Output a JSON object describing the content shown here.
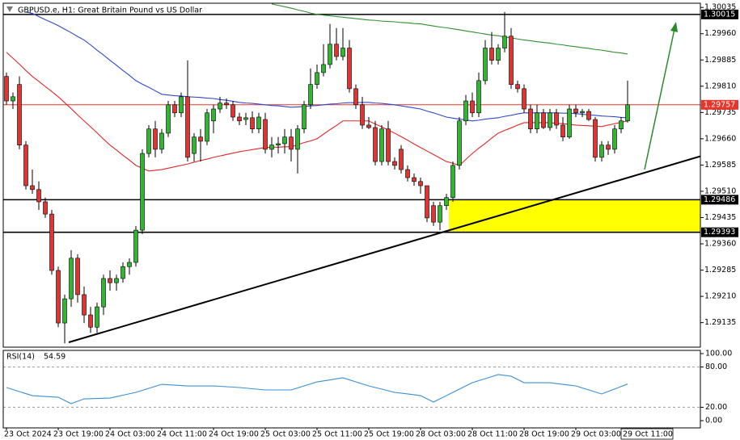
{
  "chart_data": {
    "type": "candlestick",
    "title": "GBPUSD.e, H1:  Great Britain Pound vs US Dollar",
    "categories": [
      "23 Oct 2024",
      null,
      null,
      null,
      null,
      null,
      null,
      null,
      "23 Oct 19:00",
      null,
      null,
      null,
      null,
      null,
      null,
      null,
      "24 Oct 03:00",
      null,
      null,
      null,
      null,
      null,
      null,
      null,
      "24 Oct 11:00",
      null,
      null,
      null,
      null,
      null,
      null,
      null,
      "24 Oct 19:00",
      null,
      null,
      null,
      null,
      null,
      null,
      null,
      "25 Oct 03:00",
      null,
      null,
      null,
      null,
      null,
      null,
      null,
      "25 Oct 11:00",
      null,
      null,
      null,
      null,
      null,
      null,
      null,
      "25 Oct 19:00",
      null,
      null,
      null,
      null,
      null,
      null,
      null,
      "28 Oct 03:00",
      null,
      null,
      null,
      null,
      null,
      null,
      null,
      "28 Oct 11:00",
      null,
      null,
      null,
      null,
      null,
      null,
      null,
      "28 Oct 19:00",
      null,
      null,
      null,
      null,
      null,
      null,
      null,
      "29 Oct 03:00",
      null,
      null,
      null,
      null,
      null,
      null,
      null,
      "29 Oct 11:00"
    ],
    "open": [
      1.29838,
      1.29768,
      1.29815,
      1.29642,
      1.29526,
      1.29515,
      1.2948,
      1.29445,
      1.29284,
      1.29134,
      1.29203,
      1.29319,
      1.29215,
      1.29157,
      1.29122,
      1.2918,
      1.29261,
      1.29249,
      1.29261,
      1.29295,
      1.29307,
      1.29399,
      1.29618,
      1.29688,
      1.2963,
      1.29676,
      1.29757,
      1.29734,
      1.2978,
      1.29618,
      1.29665,
      1.29653,
      1.29711,
      1.29745,
      1.29762,
      1.29757,
      1.29722,
      1.29715,
      1.2972,
      1.29688,
      1.29715,
      1.2963,
      1.29642,
      1.29646,
      1.29665,
      1.2963,
      1.29688,
      1.29757,
      1.29815,
      1.29849,
      1.29872,
      1.2993,
      1.29895,
      1.29919,
      1.29803,
      1.29757,
      1.29699,
      1.29692,
      1.29595,
      1.29688,
      1.29595,
      1.2963,
      1.29572,
      1.29549,
      1.29538,
      1.29526,
      1.29469,
      1.29422,
      1.29469,
      1.29492,
      1.29584,
      1.29711,
      1.29768,
      1.29734,
      1.29826,
      1.29919,
      1.29884,
      1.29919,
      1.29953,
      1.29815,
      1.29803,
      1.29745,
      1.29688,
      1.29734,
      1.29692,
      1.29734,
      1.29699,
      1.29665,
      1.29745,
      1.29734,
      1.29738,
      1.29715,
      1.29607,
      1.29642,
      1.2963,
      1.29688,
      1.29711
    ],
    "high": [
      1.29849,
      1.29792,
      1.29838,
      1.29653,
      1.29572,
      1.29538,
      1.29492,
      1.29457,
      1.29295,
      1.29215,
      1.29342,
      1.2933,
      1.29238,
      1.2918,
      1.29192,
      1.29272,
      1.29284,
      1.29272,
      1.29307,
      1.29319,
      1.29411,
      1.2963,
      1.29699,
      1.29711,
      1.29688,
      1.29768,
      1.29768,
      1.29792,
      1.29884,
      1.29676,
      1.29688,
      1.29745,
      1.29757,
      1.2978,
      1.29775,
      1.29768,
      1.29734,
      1.29734,
      1.29738,
      1.29734,
      1.29734,
      1.29665,
      1.29665,
      1.29688,
      1.29688,
      1.29699,
      1.29768,
      1.29861,
      1.29872,
      1.2993,
      1.29988,
      1.29976,
      1.29976,
      1.29942,
      1.29815,
      1.2978,
      1.29722,
      1.29711,
      1.29699,
      1.29711,
      1.29607,
      1.29642,
      1.29584,
      1.29561,
      1.29549,
      1.29526,
      1.2948,
      1.2948,
      1.29503,
      1.29595,
      1.29722,
      1.29785,
      1.29792,
      1.29849,
      1.29942,
      1.29965,
      1.2993,
      1.30022,
      1.29976,
      1.29826,
      1.29815,
      1.29757,
      1.29757,
      1.29745,
      1.29745,
      1.29745,
      1.29722,
      1.29757,
      1.29757,
      1.29745,
      1.29745,
      1.29722,
      1.29653,
      1.29653,
      1.29699,
      1.29722,
      1.29826
    ],
    "low": [
      1.29757,
      1.29745,
      1.2963,
      1.29515,
      1.29503,
      1.29457,
      1.29434,
      1.29272,
      1.29122,
      1.29076,
      1.2918,
      1.29192,
      1.29134,
      1.29106,
      1.29106,
      1.29157,
      1.29226,
      1.29226,
      1.29249,
      1.29272,
      1.29295,
      1.29388,
      1.29607,
      1.29607,
      1.29618,
      1.29665,
      1.29722,
      1.29722,
      1.29595,
      1.29595,
      1.29595,
      1.29642,
      1.29676,
      1.29734,
      1.29745,
      1.29711,
      1.29699,
      1.29699,
      1.29676,
      1.29676,
      1.29618,
      1.29607,
      1.29618,
      1.29618,
      1.29595,
      1.29561,
      1.29676,
      1.29745,
      1.29803,
      1.29838,
      1.29861,
      1.29884,
      1.29884,
      1.29792,
      1.29745,
      1.29688,
      1.29688,
      1.29584,
      1.29584,
      1.29584,
      1.29572,
      1.29561,
      1.29538,
      1.29526,
      1.29503,
      1.29422,
      1.29411,
      1.29399,
      1.29457,
      1.2948,
      1.29572,
      1.29699,
      1.29722,
      1.29722,
      1.29815,
      1.29872,
      1.29872,
      1.29907,
      1.29803,
      1.29792,
      1.29734,
      1.29676,
      1.29676,
      1.29688,
      1.29683,
      1.29688,
      1.29653,
      1.2966,
      1.29722,
      1.29722,
      1.29711,
      1.29595,
      1.29595,
      1.29614,
      1.29618,
      1.29676,
      1.29706
    ],
    "close": [
      1.29768,
      1.2978,
      1.29642,
      1.29526,
      1.29515,
      1.2948,
      1.29445,
      1.29284,
      1.29134,
      1.29203,
      1.29319,
      1.29215,
      1.29157,
      1.29122,
      1.2918,
      1.29261,
      1.29249,
      1.29261,
      1.29295,
      1.29307,
      1.29399,
      1.29618,
      1.29688,
      1.2963,
      1.29676,
      1.29757,
      1.29734,
      1.2978,
      1.29607,
      1.29665,
      1.29653,
      1.29734,
      1.29745,
      1.29762,
      1.29757,
      1.29722,
      1.29711,
      1.2972,
      1.29688,
      1.29722,
      1.2963,
      1.29642,
      1.29646,
      1.29665,
      1.2963,
      1.29688,
      1.29757,
      1.29815,
      1.29849,
      1.29872,
      1.2993,
      1.29895,
      1.29919,
      1.29803,
      1.29757,
      1.29699,
      1.29692,
      1.29595,
      1.29688,
      1.29595,
      1.29584,
      1.29572,
      1.29549,
      1.29538,
      1.29526,
      1.29434,
      1.29422,
      1.29469,
      1.29492,
      1.29584,
      1.29711,
      1.29768,
      1.29734,
      1.29826,
      1.29919,
      1.29884,
      1.29919,
      1.29953,
      1.29815,
      1.29803,
      1.29745,
      1.29688,
      1.29734,
      1.29692,
      1.29734,
      1.29699,
      1.29665,
      1.29745,
      1.29734,
      1.29738,
      1.29715,
      1.29607,
      1.29642,
      1.2963,
      1.29688,
      1.29711,
      1.29757
    ],
    "up_color": "#33b533",
    "down_color": "#e03535",
    "ylim": [
      1.29065,
      1.30047
    ],
    "yticks": [
      1.29135,
      {
        "value": 1.2921,
        "label": "1.29210"
      },
      1.29285,
      {
        "value": 1.2936,
        "label": "1.29360"
      },
      1.29435,
      {
        "value": 1.2951,
        "label": "1.29510"
      },
      1.29585,
      {
        "value": 1.2966,
        "label": "1.29660"
      },
      1.29735,
      {
        "value": 1.2981,
        "label": "1.29810"
      },
      1.29885,
      {
        "value": 1.2996,
        "label": "1.29960"
      },
      1.30035
    ],
    "lines": [
      {
        "color": "#2f8f2f",
        "values": [
          null,
          null,
          null,
          null,
          null,
          null,
          null,
          null,
          null,
          null,
          null,
          null,
          null,
          null,
          null,
          null,
          null,
          null,
          null,
          null,
          null,
          null,
          null,
          null,
          null,
          null,
          null,
          null,
          null,
          null,
          null,
          null,
          null,
          null,
          null,
          null,
          null,
          null,
          null,
          null,
          null,
          1.30045,
          1.30041,
          1.30037,
          1.30033,
          1.30028,
          1.30024,
          1.30019,
          1.30015,
          1.30013,
          1.30011,
          1.30009,
          1.30007,
          1.30005,
          1.30003,
          1.30001,
          1.29999,
          1.29998,
          1.29996,
          1.29995,
          1.29994,
          1.29992,
          1.29991,
          1.29989,
          1.29988,
          1.29985,
          1.29982,
          1.29979,
          1.29977,
          1.29974,
          1.29971,
          1.29968,
          1.29965,
          1.29962,
          1.29959,
          1.29956,
          1.29954,
          1.29951,
          1.29948,
          1.29945,
          1.29942,
          1.2994,
          1.29937,
          1.29935,
          1.29933,
          1.2993,
          1.29928,
          1.29925,
          1.29923,
          1.2992,
          1.29918,
          1.29915,
          1.29913,
          1.2991,
          1.29907,
          1.29905,
          1.29902
        ]
      },
      {
        "color": "#3048c8",
        "values": [
          null,
          null,
          null,
          1.30022,
          1.30018,
          1.30009,
          1.3,
          1.29992,
          1.29983,
          1.29973,
          1.29963,
          1.29952,
          1.29942,
          1.29928,
          1.29913,
          1.29899,
          1.29884,
          1.2987,
          1.29855,
          1.29841,
          1.29826,
          1.29816,
          1.29807,
          1.29797,
          1.29787,
          1.29785,
          1.29783,
          1.29782,
          1.2978,
          1.29779,
          1.29778,
          1.29776,
          1.29775,
          1.29772,
          1.2977,
          1.29767,
          1.29764,
          1.29762,
          1.29761,
          1.29759,
          1.29757,
          1.29755,
          1.29754,
          1.29752,
          1.2975,
          1.29751,
          1.29752,
          1.29754,
          1.29755,
          1.29757,
          1.29759,
          1.2976,
          1.29762,
          1.29763,
          1.29763,
          1.29764,
          1.29764,
          1.29762,
          1.29761,
          1.29759,
          1.29757,
          1.29754,
          1.29751,
          1.29748,
          1.29745,
          1.29739,
          1.29734,
          1.29728,
          1.29722,
          1.29719,
          1.29716,
          1.29714,
          1.29711,
          1.29713,
          1.29716,
          1.29718,
          1.2972,
          1.29724,
          1.29727,
          1.29731,
          1.29734,
          1.29734,
          1.29734,
          1.29734,
          1.29734,
          1.29734,
          1.29733,
          1.29733,
          1.29732,
          1.2973,
          1.29728,
          1.29727,
          1.29725,
          1.29724,
          1.29723,
          1.29721,
          1.2972
        ]
      },
      {
        "color": "#e02828",
        "values": [
          1.29907,
          1.2989,
          1.29873,
          1.29855,
          1.29838,
          1.29824,
          1.29809,
          1.29795,
          1.2978,
          1.29763,
          1.29746,
          1.29728,
          1.29711,
          1.29694,
          1.29677,
          1.29659,
          1.29642,
          1.29628,
          1.29613,
          1.29599,
          1.29584,
          1.29576,
          1.29568,
          1.2957,
          1.29572,
          1.29576,
          1.2958,
          1.29584,
          1.29588,
          1.29593,
          1.29598,
          1.29602,
          1.29607,
          1.29611,
          1.29615,
          1.29619,
          1.29623,
          1.29626,
          1.29629,
          1.29632,
          1.29635,
          1.29636,
          1.29636,
          1.29637,
          1.29637,
          1.29643,
          1.29649,
          1.29654,
          1.2966,
          1.29673,
          1.29686,
          1.29698,
          1.29711,
          1.29711,
          1.29711,
          1.29711,
          1.29711,
          1.29702,
          1.29694,
          1.29685,
          1.29676,
          1.29666,
          1.29656,
          1.29645,
          1.29635,
          1.29625,
          1.29615,
          1.29605,
          1.29595,
          1.2959,
          1.29584,
          1.29601,
          1.29618,
          1.29633,
          1.29647,
          1.29662,
          1.29676,
          1.29684,
          1.29691,
          1.29699,
          1.29706,
          1.29706,
          1.29706,
          1.29706,
          1.29706,
          1.29704,
          1.29703,
          1.29701,
          1.29699,
          1.29698,
          1.29697,
          1.29696,
          1.29695,
          1.29699,
          1.29703,
          1.29707,
          1.29711
        ]
      }
    ],
    "levels": [
      {
        "value": 1.30015,
        "color": "#000000"
      },
      {
        "value": 1.29757,
        "color": "#e8362d"
      },
      {
        "value": 1.29486,
        "color": "#000000"
      },
      {
        "value": 1.29393,
        "color": "#000000"
      }
    ],
    "zone_color": "#ffff00",
    "rsi": {
      "title": "RSI(14)",
      "color": "#3a8fd4",
      "values": [
        49.4,
        46.4,
        43.4,
        40.3,
        37.3,
        36.7,
        36.1,
        35.5,
        34.9,
        30.1,
        25.3,
        28.9,
        32.5,
        32.8,
        33.1,
        33.4,
        33.7,
        35.8,
        38.0,
        40.1,
        42.2,
        45.2,
        48.2,
        51.2,
        54.2,
        53.6,
        53.0,
        52.4,
        51.8,
        51.8,
        51.8,
        51.8,
        51.8,
        51.2,
        50.6,
        50.0,
        49.4,
        48.5,
        47.6,
        46.7,
        45.8,
        45.8,
        45.8,
        45.8,
        45.8,
        48.8,
        51.8,
        54.8,
        57.8,
        59.3,
        60.8,
        62.4,
        63.9,
        60.9,
        57.8,
        54.8,
        51.8,
        49.4,
        47.0,
        44.6,
        42.2,
        41.0,
        39.8,
        38.6,
        37.3,
        32.5,
        27.7,
        32.5,
        37.3,
        42.2,
        47.0,
        51.8,
        56.6,
        59.6,
        62.7,
        65.7,
        68.7,
        67.5,
        66.3,
        61.5,
        56.6,
        56.6,
        56.6,
        56.6,
        56.6,
        55.4,
        54.2,
        53.0,
        51.8,
        48.8,
        45.8,
        42.8,
        39.8,
        43.5,
        47.2,
        50.9,
        54.59
      ],
      "ylim": [
        -10.8,
        104.8
      ],
      "yticks": [
        {
          "value": 100,
          "label": "100.00"
        },
        {
          "value": 80,
          "label": "80.00"
        },
        {
          "value": 20,
          "label": "20.00"
        },
        {
          "value": 0,
          "label": "0.00"
        }
      ],
      "levels": [
        80,
        20
      ]
    }
  }
}
